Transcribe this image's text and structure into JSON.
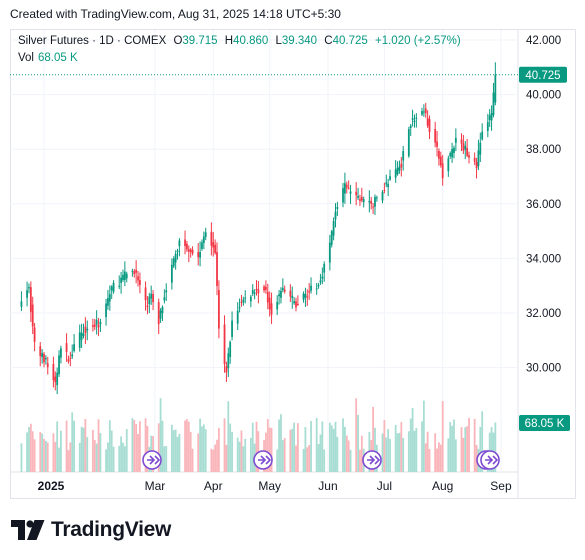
{
  "header": {
    "created": "Created with TradingView.com, Aug 31, 2025 14:18 UTC+5:30"
  },
  "legend": {
    "title": "Silver Futures · 1D · COMEX",
    "o_label": "O",
    "o_value": "39.715",
    "h_label": "H",
    "h_value": "40.860",
    "l_label": "L",
    "l_value": "39.340",
    "c_label": "C",
    "c_value": "40.725",
    "change": "+1.020 (+2.57%)",
    "vol_label": "Vol",
    "vol_value": "68.05 K"
  },
  "price_badge": "40.725",
  "volume_badge": "68.05 K",
  "brand": {
    "name": "TradingView"
  },
  "colors": {
    "up": "#089981",
    "down": "#f23645",
    "up_vol": "#a7ddd3",
    "down_vol": "#f9b5ba",
    "grid": "#f0f3fa",
    "marker": "#7e4ad1"
  },
  "chart_data": {
    "type": "candlestick",
    "y_ticks": [
      "42.000",
      "40.000",
      "38.000",
      "36.000",
      "34.000",
      "32.000",
      "30.000"
    ],
    "ylim": [
      28.2,
      42.6
    ],
    "x_ticks": [
      "2025",
      "Mar",
      "Apr",
      "May",
      "Jun",
      "Jul",
      "Aug",
      "Sep"
    ],
    "last_price": 40.725,
    "event_markers": 6,
    "keyframes": [
      [
        "2024-12-20",
        32.6
      ],
      [
        "2024-12-24",
        32.9
      ],
      [
        "2024-12-27",
        30.8
      ],
      [
        "2025-01-02",
        30.2
      ],
      [
        "2025-01-07",
        29.4
      ],
      [
        "2025-01-10",
        30.8
      ],
      [
        "2025-01-14",
        30.3
      ],
      [
        "2025-01-22",
        31.4
      ],
      [
        "2025-01-30",
        31.6
      ],
      [
        "2025-02-06",
        32.9
      ],
      [
        "2025-02-12",
        33.3
      ],
      [
        "2025-02-18",
        33.6
      ],
      [
        "2025-02-24",
        32.3
      ],
      [
        "2025-02-27",
        32.6
      ],
      [
        "2025-03-03",
        31.7
      ],
      [
        "2025-03-07",
        33.0
      ],
      [
        "2025-03-14",
        34.6
      ],
      [
        "2025-03-19",
        34.4
      ],
      [
        "2025-03-24",
        34.0
      ],
      [
        "2025-03-28",
        35.1
      ],
      [
        "2025-04-02",
        34.3
      ],
      [
        "2025-04-04",
        31.5
      ],
      [
        "2025-04-07",
        30.0
      ],
      [
        "2025-04-08",
        29.9
      ],
      [
        "2025-04-11",
        31.6
      ],
      [
        "2025-04-15",
        32.3
      ],
      [
        "2025-04-22",
        32.8
      ],
      [
        "2025-04-28",
        32.9
      ],
      [
        "2025-05-02",
        32.1
      ],
      [
        "2025-05-08",
        32.9
      ],
      [
        "2025-05-15",
        32.3
      ],
      [
        "2025-05-20",
        32.7
      ],
      [
        "2025-05-27",
        33.0
      ],
      [
        "2025-06-02",
        34.5
      ],
      [
        "2025-06-05",
        35.8
      ],
      [
        "2025-06-10",
        36.6
      ],
      [
        "2025-06-17",
        36.2
      ],
      [
        "2025-06-25",
        36.0
      ],
      [
        "2025-07-02",
        36.7
      ],
      [
        "2025-07-10",
        37.5
      ],
      [
        "2025-07-14",
        38.9
      ],
      [
        "2025-07-22",
        39.4
      ],
      [
        "2025-07-28",
        38.2
      ],
      [
        "2025-08-01",
        37.1
      ],
      [
        "2025-08-05",
        37.8
      ],
      [
        "2025-08-08",
        38.3
      ],
      [
        "2025-08-13",
        38.0
      ],
      [
        "2025-08-19",
        37.4
      ],
      [
        "2025-08-22",
        38.7
      ],
      [
        "2025-08-27",
        39.2
      ],
      [
        "2025-08-29",
        40.725
      ]
    ],
    "volume_range": [
      0,
      68.05
    ]
  }
}
